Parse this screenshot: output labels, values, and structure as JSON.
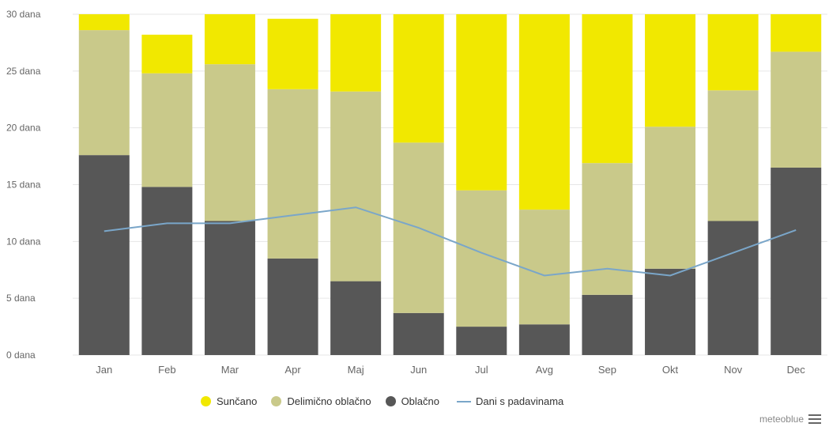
{
  "chart_data": {
    "type": "bar",
    "stacked": true,
    "categories": [
      "Jan",
      "Feb",
      "Mar",
      "Apr",
      "Maj",
      "Jun",
      "Jul",
      "Avg",
      "Sep",
      "Okt",
      "Nov",
      "Dec"
    ],
    "y_ticks": [
      "0 dana",
      "5 dana",
      "10 dana",
      "15 dana",
      "20 dana",
      "25 dana",
      "30 dana"
    ],
    "ylim": [
      0,
      30
    ],
    "grid": true,
    "legend_position": "bottom",
    "series": [
      {
        "name": "Oblačno",
        "color": "#575757",
        "values": [
          17.6,
          14.8,
          11.8,
          8.5,
          6.5,
          3.7,
          2.5,
          2.7,
          5.3,
          7.6,
          11.8,
          16.5
        ]
      },
      {
        "name": "Delimično oblačno",
        "color": "#c9c98a",
        "values": [
          11.0,
          10.0,
          13.8,
          14.9,
          16.7,
          15.0,
          12.0,
          10.1,
          11.6,
          12.5,
          11.5,
          10.2
        ]
      },
      {
        "name": "Sunčano",
        "color": "#f1e800",
        "values": [
          1.4,
          3.4,
          4.4,
          6.2,
          6.8,
          11.3,
          15.5,
          17.2,
          13.1,
          9.9,
          6.7,
          3.3
        ]
      }
    ],
    "line_series": {
      "name": "Dani s padavinama",
      "color": "#7aa6c9",
      "values": [
        10.9,
        11.6,
        11.6,
        12.3,
        13.0,
        11.2,
        9.0,
        7.0,
        7.6,
        7.0,
        9.0,
        11.0
      ]
    }
  },
  "legend": {
    "items": [
      {
        "label": "Sunčano",
        "color": "#f1e800",
        "symbol": "dot"
      },
      {
        "label": "Delimično oblačno",
        "color": "#c9c98a",
        "symbol": "dot"
      },
      {
        "label": "Oblačno",
        "color": "#575757",
        "symbol": "dot"
      },
      {
        "label": "Dani s padavinama",
        "color": "#7aa6c9",
        "symbol": "line"
      }
    ]
  },
  "credit": {
    "text": "meteoblue",
    "icon": "menu-icon"
  }
}
